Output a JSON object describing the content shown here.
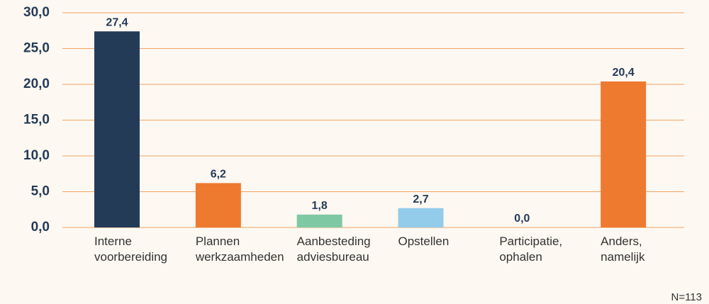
{
  "chart_data": {
    "type": "bar",
    "categories": [
      "Interne voorbereiding",
      "Plannen werkzaamheden",
      "Aanbesteding adviesbureau",
      "Opstellen",
      "Participatie, ophalen",
      "Anders, namelijk"
    ],
    "values": [
      27.4,
      6.2,
      1.8,
      2.7,
      0.0,
      20.4
    ],
    "value_labels": [
      "27,4",
      "6,2",
      "1,8",
      "2,7",
      "0,0",
      "20,4"
    ],
    "colors": [
      "#243b58",
      "#ee7a30",
      "#7ec8a4",
      "#93cbea",
      "#243b58",
      "#ee7a30"
    ],
    "ylim": [
      0,
      30
    ],
    "yticks": [
      {
        "value": 0,
        "label": "0,0"
      },
      {
        "value": 5,
        "label": "5,0"
      },
      {
        "value": 10,
        "label": "10,0"
      },
      {
        "value": 15,
        "label": "15,0"
      },
      {
        "value": 20,
        "label": "20,0"
      },
      {
        "value": 25,
        "label": "25,0"
      },
      {
        "value": 30,
        "label": "30,0"
      }
    ],
    "grid": true,
    "note": "N=113"
  }
}
